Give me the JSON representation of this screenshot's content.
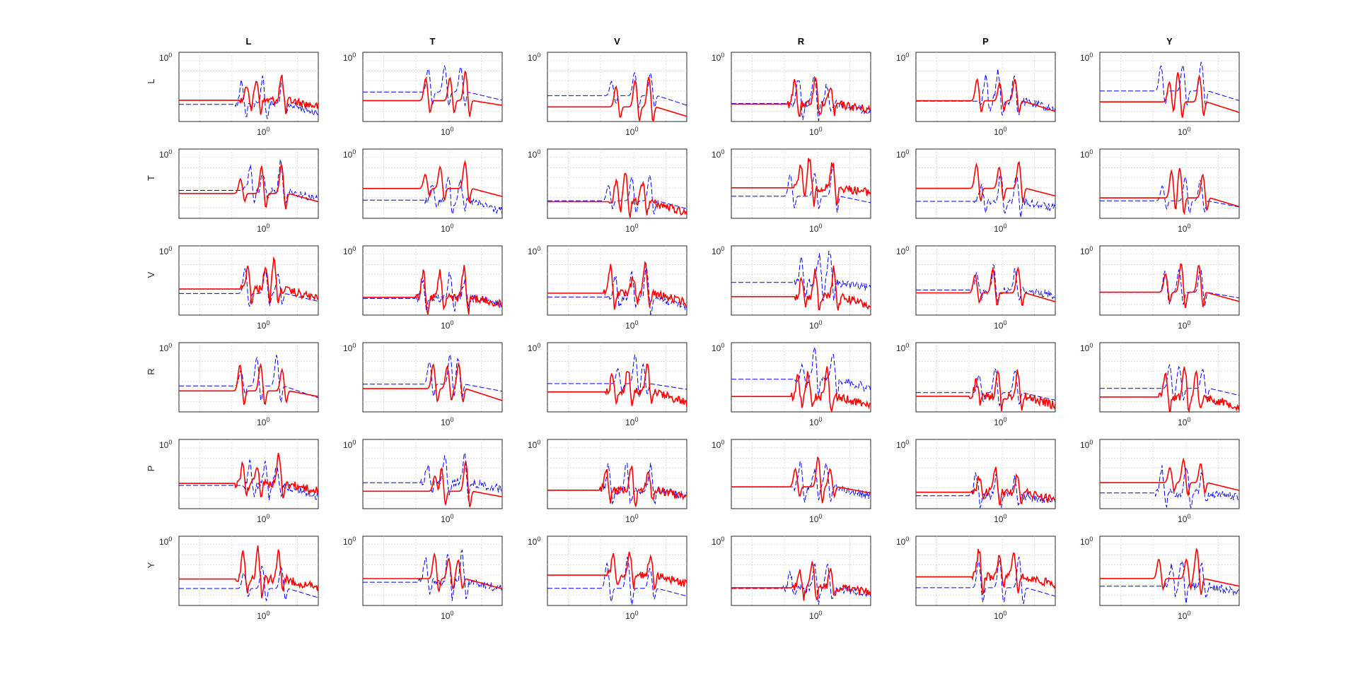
{
  "chart_data": {
    "type": "line",
    "layout": "6x6 grid of subplots",
    "column_titles": [
      "L",
      "T",
      "V",
      "R",
      "P",
      "Y"
    ],
    "row_labels": [
      "L",
      "T",
      "V",
      "R",
      "P",
      "Y"
    ],
    "x_tick_base": "10",
    "x_tick_exponent": "0",
    "y_tick_base": "10",
    "y_tick_exponent": "0",
    "xscale": "log",
    "yscale": "log",
    "grid": true,
    "series_styles": [
      {
        "color": "#0000ff",
        "style": "dashed"
      },
      {
        "color": "#ff0000",
        "style": "solid"
      }
    ],
    "colors": {
      "blue": "#0000ff",
      "red": "#ff0000",
      "axis": "#262626",
      "grid": "#c8c8c8"
    }
  }
}
